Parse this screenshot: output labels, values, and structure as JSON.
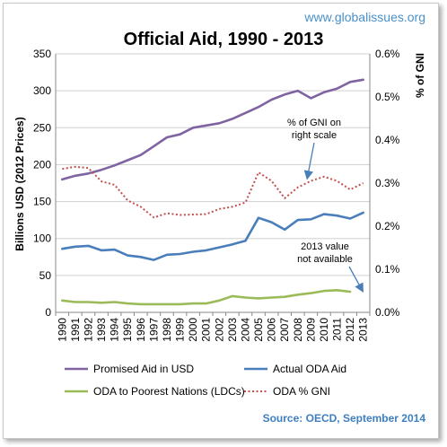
{
  "chart_data": {
    "type": "line",
    "title": "Official Aid, 1990 - 2013",
    "watermark": "www.globalissues.org",
    "source": "Source: OECD, September 2014",
    "ylabel": "Billions USD (2012 Prices)",
    "y2label": "% of GNI",
    "ylim": [
      0,
      350
    ],
    "y2lim": [
      0,
      0.6
    ],
    "yticks": [
      "0",
      "50",
      "100",
      "150",
      "200",
      "250",
      "300",
      "350"
    ],
    "y2ticks": [
      "0.0%",
      "0.1%",
      "0.2%",
      "0.3%",
      "0.4%",
      "0.5%",
      "0.6%"
    ],
    "grid": true,
    "legend_position": "bottom",
    "x": [
      "1990",
      "1991",
      "1992",
      "1993",
      "1994",
      "1995",
      "1996",
      "1997",
      "1998",
      "1999",
      "2000",
      "2001",
      "2002",
      "2003",
      "2004",
      "2005",
      "2006",
      "2007",
      "2008",
      "2009",
      "2010",
      "2011",
      "2012",
      "2013"
    ],
    "series": [
      {
        "name": "Promised Aid in USD",
        "axis": "left",
        "color": "#8064a2",
        "style": "solid",
        "values": [
          180,
          185,
          188,
          193,
          199,
          206,
          213,
          225,
          237,
          241,
          250,
          253,
          256,
          262,
          270,
          278,
          288,
          295,
          300,
          290,
          298,
          303,
          312,
          315
        ]
      },
      {
        "name": "Actual ODA Aid",
        "axis": "left",
        "color": "#4a7ebb",
        "style": "solid",
        "values": [
          86,
          89,
          90,
          84,
          85,
          77,
          75,
          71,
          78,
          79,
          82,
          84,
          88,
          92,
          97,
          128,
          122,
          112,
          125,
          126,
          133,
          131,
          127,
          135
        ]
      },
      {
        "name": "ODA to Poorest Nations (LDCs)",
        "axis": "left",
        "color": "#9bbb59",
        "style": "solid",
        "values": [
          16,
          14,
          14,
          13,
          14,
          12,
          11,
          11,
          11,
          11,
          12,
          12,
          16,
          22,
          20,
          19,
          20,
          21,
          24,
          26,
          29,
          30,
          28,
          null
        ]
      },
      {
        "name": "ODA % GNI",
        "axis": "right",
        "color": "#c0504d",
        "style": "dotted",
        "values": [
          0.333,
          0.338,
          0.335,
          0.304,
          0.296,
          0.26,
          0.245,
          0.22,
          0.23,
          0.226,
          0.227,
          0.228,
          0.24,
          0.245,
          0.255,
          0.325,
          0.305,
          0.265,
          0.29,
          0.305,
          0.315,
          0.305,
          0.285,
          0.3
        ]
      }
    ],
    "annotations": [
      {
        "text_lines": [
          "% of GNI on",
          "right scale"
        ],
        "arrow_to": {
          "x": "2009",
          "y2": 0.3
        }
      },
      {
        "text_lines": [
          "2013 value",
          "not available"
        ],
        "arrow_to": {
          "x": "2013",
          "y": 27
        }
      }
    ]
  }
}
